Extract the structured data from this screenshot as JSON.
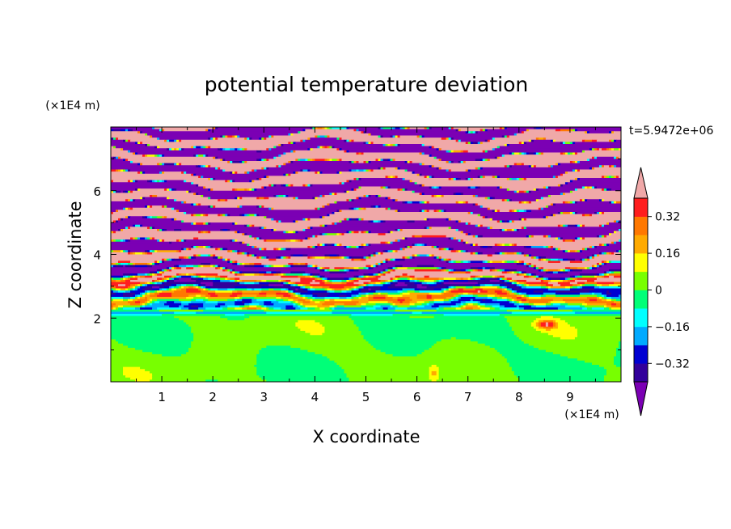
{
  "chart_data": {
    "type": "heatmap",
    "title": "potential temperature deviation",
    "xlabel": "X coordinate",
    "ylabel": "Z coordinate",
    "x_unit": "(×1E4 m)",
    "y_unit": "(×1E4 m)",
    "time_label": "t=5.9472e+06",
    "xlim": [
      0,
      10
    ],
    "ylim": [
      0,
      8
    ],
    "x_ticks": [
      "1",
      "2",
      "3",
      "4",
      "5",
      "6",
      "7",
      "8",
      "9"
    ],
    "y_ticks": [
      "2",
      "4",
      "6"
    ],
    "colorbar": {
      "levels": [
        -0.4,
        -0.32,
        -0.24,
        -0.16,
        -0.08,
        0,
        0.08,
        0.16,
        0.24,
        0.32,
        0.4
      ],
      "labels": [
        "0.32",
        "0.16",
        "0",
        "−0.16",
        "−0.32"
      ],
      "label_values": [
        0.32,
        0.16,
        0,
        -0.16,
        -0.32
      ],
      "colors_low_to_high": [
        "#7b00b4",
        "#32009b",
        "#0000d2",
        "#00aaff",
        "#00ffff",
        "#00ff78",
        "#78ff00",
        "#ffff00",
        "#ffaa00",
        "#ff7800",
        "#ff1e1e",
        "#f0a8a8"
      ]
    },
    "regions": [
      {
        "name": "upper",
        "z_range": [
          2.2,
          8.0
        ],
        "pattern": "alternating horizontal bands of pink (+) and purple (−), with colorful transitions between 2.2 and 5"
      },
      {
        "name": "lower",
        "z_range": [
          0,
          2.2
        ],
        "pattern": "mostly green/yellow-green (≈0), with yellow spike near x≈6.3 and red/orange near x≈8.5, z≈1.8"
      }
    ]
  }
}
